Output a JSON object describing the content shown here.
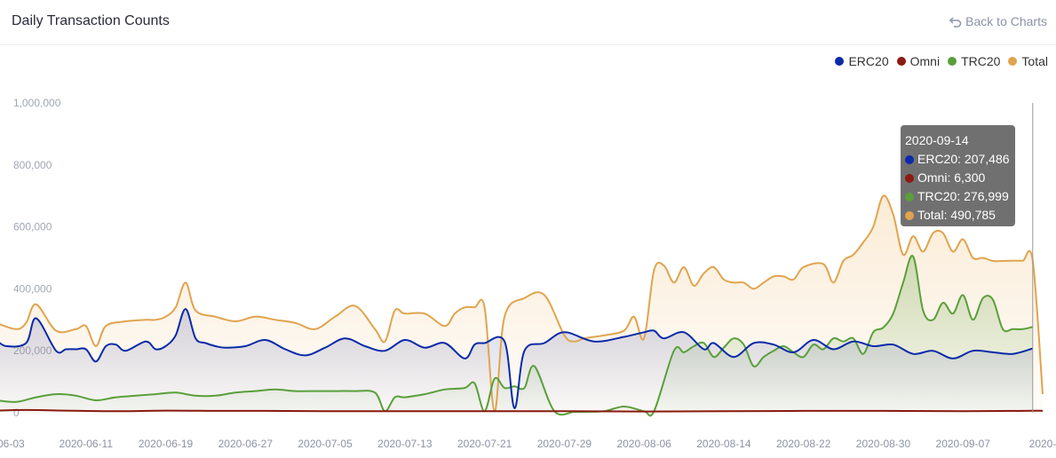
{
  "header": {
    "title": "Daily Transaction Counts",
    "back_label": "Back to Charts"
  },
  "chart_data": {
    "type": "area",
    "title": "Daily Transaction Counts",
    "xlabel": "",
    "ylabel": "",
    "ylim": [
      0,
      1000000
    ],
    "y_ticks": [
      "1,000,000",
      "800,000",
      "600,000",
      "400,000",
      "200,000",
      "0"
    ],
    "y_tick_values": [
      1000000,
      800000,
      600000,
      400000,
      200000,
      0
    ],
    "x_tick_labels": [
      "0-06-03",
      "2020-06-11",
      "2020-06-19",
      "2020-06-27",
      "2020-07-05",
      "2020-07-13",
      "2020-07-21",
      "2020-07-29",
      "2020-08-06",
      "2020-08-14",
      "2020-08-22",
      "2020-08-30",
      "2020-09-07",
      "2020-"
    ],
    "x_start": "2020-06-03",
    "x_end": "2020-09-15",
    "grid": false,
    "legend_position": "top-right",
    "series": [
      {
        "name": "ERC20",
        "color": "#0a2aa8",
        "dates": [
          "2020-06-02",
          "2020-06-03",
          "2020-06-05",
          "2020-06-06",
          "2020-06-08",
          "2020-06-09",
          "2020-06-10",
          "2020-06-11",
          "2020-06-12",
          "2020-06-13",
          "2020-06-14",
          "2020-06-15",
          "2020-06-17",
          "2020-06-18",
          "2020-06-19",
          "2020-06-20",
          "2020-06-21",
          "2020-06-22",
          "2020-06-23",
          "2020-06-24",
          "2020-06-25",
          "2020-06-27",
          "2020-06-29",
          "2020-07-01",
          "2020-07-03",
          "2020-07-05",
          "2020-07-07",
          "2020-07-09",
          "2020-07-11",
          "2020-07-13",
          "2020-07-15",
          "2020-07-17",
          "2020-07-19",
          "2020-07-20",
          "2020-07-21",
          "2020-07-23",
          "2020-07-24",
          "2020-07-25",
          "2020-07-27",
          "2020-07-29",
          "2020-08-01",
          "2020-08-04",
          "2020-08-06",
          "2020-08-07",
          "2020-08-08",
          "2020-08-10",
          "2020-08-12",
          "2020-08-13",
          "2020-08-15",
          "2020-08-17",
          "2020-08-19",
          "2020-08-21",
          "2020-08-23",
          "2020-08-25",
          "2020-08-27",
          "2020-08-29",
          "2020-08-31",
          "2020-09-02",
          "2020-09-04",
          "2020-09-06",
          "2020-09-08",
          "2020-09-10",
          "2020-09-12",
          "2020-09-14"
        ],
        "values": [
          235000,
          215000,
          225000,
          305000,
          200000,
          205000,
          205000,
          205000,
          165000,
          215000,
          220000,
          200000,
          230000,
          205000,
          215000,
          250000,
          335000,
          240000,
          225000,
          215000,
          210000,
          215000,
          235000,
          205000,
          185000,
          210000,
          240000,
          215000,
          200000,
          235000,
          210000,
          225000,
          175000,
          220000,
          225000,
          230000,
          15000,
          200000,
          225000,
          260000,
          230000,
          245000,
          260000,
          265000,
          240000,
          260000,
          205000,
          225000,
          180000,
          225000,
          220000,
          195000,
          235000,
          205000,
          230000,
          215000,
          220000,
          190000,
          200000,
          175000,
          200000,
          195000,
          190000,
          207486
        ]
      },
      {
        "name": "Omni",
        "color": "#8b1a10",
        "dates": [
          "2020-06-02",
          "2020-06-05",
          "2020-06-09",
          "2020-06-14",
          "2020-06-19",
          "2020-06-24",
          "2020-06-29",
          "2020-07-05",
          "2020-07-13",
          "2020-07-21",
          "2020-07-29",
          "2020-08-06",
          "2020-08-14",
          "2020-08-22",
          "2020-08-30",
          "2020-09-07",
          "2020-09-14",
          "2020-09-15"
        ],
        "values": [
          7000,
          9000,
          7000,
          5000,
          7000,
          6000,
          6000,
          5000,
          5000,
          5000,
          5000,
          4000,
          5000,
          6000,
          6000,
          5000,
          6300,
          6000
        ]
      },
      {
        "name": "TRC20",
        "color": "#5a9f3a",
        "dates": [
          "2020-06-02",
          "2020-06-04",
          "2020-06-06",
          "2020-06-08",
          "2020-06-10",
          "2020-06-12",
          "2020-06-14",
          "2020-06-16",
          "2020-06-18",
          "2020-06-20",
          "2020-06-22",
          "2020-06-24",
          "2020-06-26",
          "2020-06-28",
          "2020-06-30",
          "2020-07-02",
          "2020-07-04",
          "2020-07-06",
          "2020-07-08",
          "2020-07-10",
          "2020-07-11",
          "2020-07-12",
          "2020-07-13",
          "2020-07-15",
          "2020-07-17",
          "2020-07-19",
          "2020-07-20",
          "2020-07-21",
          "2020-07-22",
          "2020-07-23",
          "2020-07-24",
          "2020-07-25",
          "2020-07-26",
          "2020-07-28",
          "2020-07-30",
          "2020-07-31",
          "2020-08-02",
          "2020-08-04",
          "2020-08-06",
          "2020-08-07",
          "2020-08-09",
          "2020-08-10",
          "2020-08-11",
          "2020-08-12",
          "2020-08-13",
          "2020-08-14",
          "2020-08-15",
          "2020-08-16",
          "2020-08-17",
          "2020-08-18",
          "2020-08-19",
          "2020-08-20",
          "2020-08-21",
          "2020-08-22",
          "2020-08-23",
          "2020-08-24",
          "2020-08-25",
          "2020-08-26",
          "2020-08-27",
          "2020-08-28",
          "2020-08-29",
          "2020-08-30",
          "2020-08-31",
          "2020-09-01",
          "2020-09-02",
          "2020-09-03",
          "2020-09-04",
          "2020-09-05",
          "2020-09-06",
          "2020-09-07",
          "2020-09-08",
          "2020-09-09",
          "2020-09-10",
          "2020-09-11",
          "2020-09-12",
          "2020-09-13",
          "2020-09-14"
        ],
        "values": [
          40000,
          35000,
          50000,
          60000,
          55000,
          40000,
          50000,
          55000,
          60000,
          65000,
          55000,
          55000,
          65000,
          70000,
          75000,
          70000,
          70000,
          70000,
          70000,
          65000,
          5000,
          50000,
          50000,
          60000,
          75000,
          80000,
          95000,
          5000,
          110000,
          80000,
          85000,
          80000,
          150000,
          5000,
          3000,
          3000,
          5000,
          20000,
          5000,
          5000,
          200000,
          195000,
          215000,
          225000,
          180000,
          210000,
          240000,
          220000,
          150000,
          180000,
          200000,
          215000,
          195000,
          180000,
          220000,
          205000,
          240000,
          230000,
          240000,
          190000,
          260000,
          275000,
          320000,
          420000,
          505000,
          330000,
          300000,
          355000,
          320000,
          380000,
          300000,
          370000,
          365000,
          270000,
          270000,
          270000,
          276999
        ]
      },
      {
        "name": "Total",
        "color": "#e0a44e",
        "dates": [
          "2020-06-02",
          "2020-06-04",
          "2020-06-05",
          "2020-06-06",
          "2020-06-08",
          "2020-06-10",
          "2020-06-11",
          "2020-06-12",
          "2020-06-13",
          "2020-06-15",
          "2020-06-17",
          "2020-06-18",
          "2020-06-19",
          "2020-06-20",
          "2020-06-21",
          "2020-06-22",
          "2020-06-24",
          "2020-06-26",
          "2020-06-28",
          "2020-06-30",
          "2020-07-02",
          "2020-07-04",
          "2020-07-06",
          "2020-07-08",
          "2020-07-10",
          "2020-07-11",
          "2020-07-12",
          "2020-07-13",
          "2020-07-15",
          "2020-07-17",
          "2020-07-18",
          "2020-07-19",
          "2020-07-20",
          "2020-07-21",
          "2020-07-22",
          "2020-07-23",
          "2020-07-25",
          "2020-07-27",
          "2020-07-29",
          "2020-07-30",
          "2020-07-31",
          "2020-08-02",
          "2020-08-04",
          "2020-08-05",
          "2020-08-06",
          "2020-08-07",
          "2020-08-08",
          "2020-08-09",
          "2020-08-10",
          "2020-08-11",
          "2020-08-12",
          "2020-08-13",
          "2020-08-14",
          "2020-08-15",
          "2020-08-16",
          "2020-08-17",
          "2020-08-18",
          "2020-08-19",
          "2020-08-20",
          "2020-08-21",
          "2020-08-22",
          "2020-08-24",
          "2020-08-25",
          "2020-08-26",
          "2020-08-27",
          "2020-08-28",
          "2020-08-29",
          "2020-08-30",
          "2020-08-31",
          "2020-09-01",
          "2020-09-02",
          "2020-09-03",
          "2020-09-04",
          "2020-09-05",
          "2020-09-06",
          "2020-09-07",
          "2020-09-08",
          "2020-09-09",
          "2020-09-10",
          "2020-09-11",
          "2020-09-12",
          "2020-09-13",
          "2020-09-14",
          "2020-09-15"
        ],
        "values": [
          290000,
          270000,
          290000,
          350000,
          265000,
          270000,
          280000,
          215000,
          280000,
          295000,
          300000,
          300000,
          310000,
          340000,
          420000,
          330000,
          310000,
          295000,
          310000,
          300000,
          290000,
          270000,
          310000,
          345000,
          270000,
          230000,
          330000,
          320000,
          320000,
          280000,
          320000,
          340000,
          340000,
          340000,
          5000,
          310000,
          370000,
          380000,
          250000,
          230000,
          240000,
          250000,
          265000,
          310000,
          240000,
          460000,
          475000,
          420000,
          470000,
          410000,
          450000,
          470000,
          430000,
          420000,
          420000,
          400000,
          420000,
          440000,
          440000,
          430000,
          470000,
          480000,
          420000,
          490000,
          510000,
          550000,
          600000,
          700000,
          640000,
          510000,
          570000,
          520000,
          580000,
          580000,
          520000,
          560000,
          500000,
          500000,
          490000,
          490000,
          490785,
          490785,
          490785,
          60000
        ]
      }
    ],
    "tooltip": {
      "date": "2020-09-14",
      "rows": [
        "ERC20: 207,486",
        "Omni: 6,300",
        "TRC20: 276,999",
        "Total: 490,785"
      ]
    }
  }
}
